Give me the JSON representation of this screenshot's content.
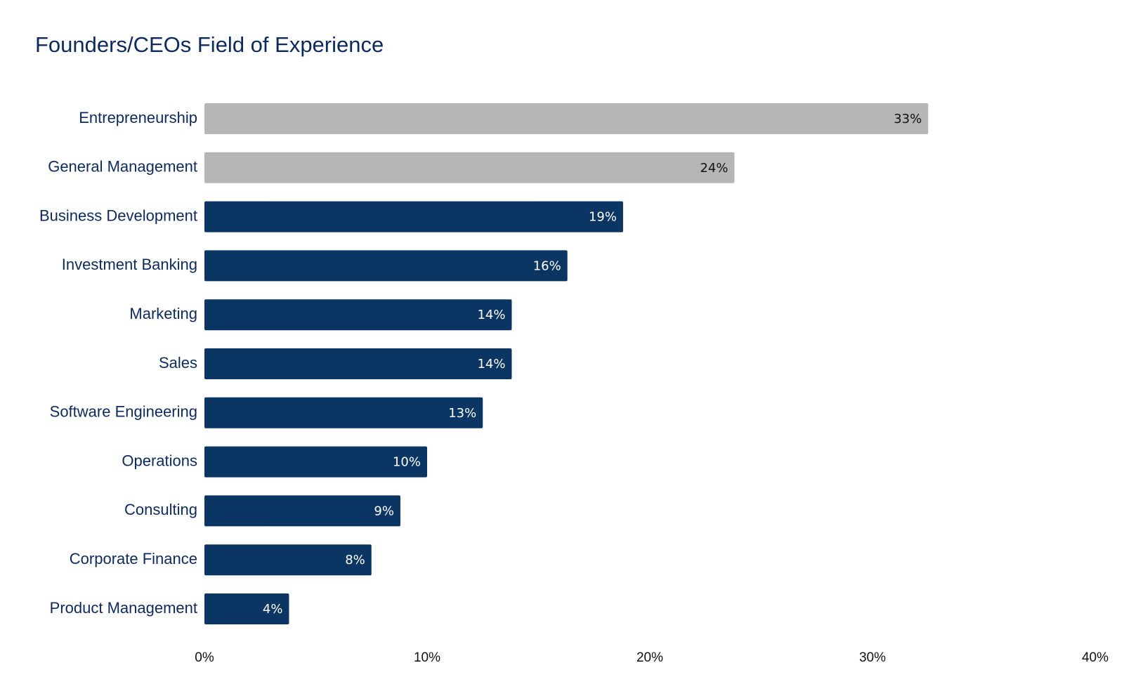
{
  "chart_data": {
    "type": "bar",
    "orientation": "horizontal",
    "title": "Founders/CEOs Field of Experience",
    "xlabel": "",
    "ylabel": "",
    "categories": [
      "Entrepreneurship",
      "General Management",
      "Business Development",
      "Investment Banking",
      "Marketing",
      "Sales",
      "Software Engineering",
      "Operations",
      "Consulting",
      "Corporate Finance",
      "Product Management"
    ],
    "values": [
      32.5,
      23.8,
      18.8,
      16.3,
      13.8,
      13.8,
      12.5,
      10.0,
      8.8,
      7.5,
      3.8
    ],
    "value_labels": [
      "33%",
      "24%",
      "19%",
      "16%",
      "14%",
      "14%",
      "13%",
      "10%",
      "9%",
      "8%",
      "4%"
    ],
    "highlighted": [
      true,
      true,
      false,
      false,
      false,
      false,
      false,
      false,
      false,
      false,
      false
    ],
    "xlim": [
      0,
      40
    ],
    "xticks": [
      0,
      10,
      20,
      30,
      40
    ],
    "xtick_labels": [
      "0%",
      "10%",
      "20%",
      "30%",
      "40%"
    ],
    "grid": false,
    "legend": "none",
    "colors": {
      "highlight_bar": "#b6b6b6",
      "main_bar": "#0b3663",
      "highlight_label": "#111111",
      "main_label": "#ffffff",
      "title": "#0d2a5c"
    }
  }
}
